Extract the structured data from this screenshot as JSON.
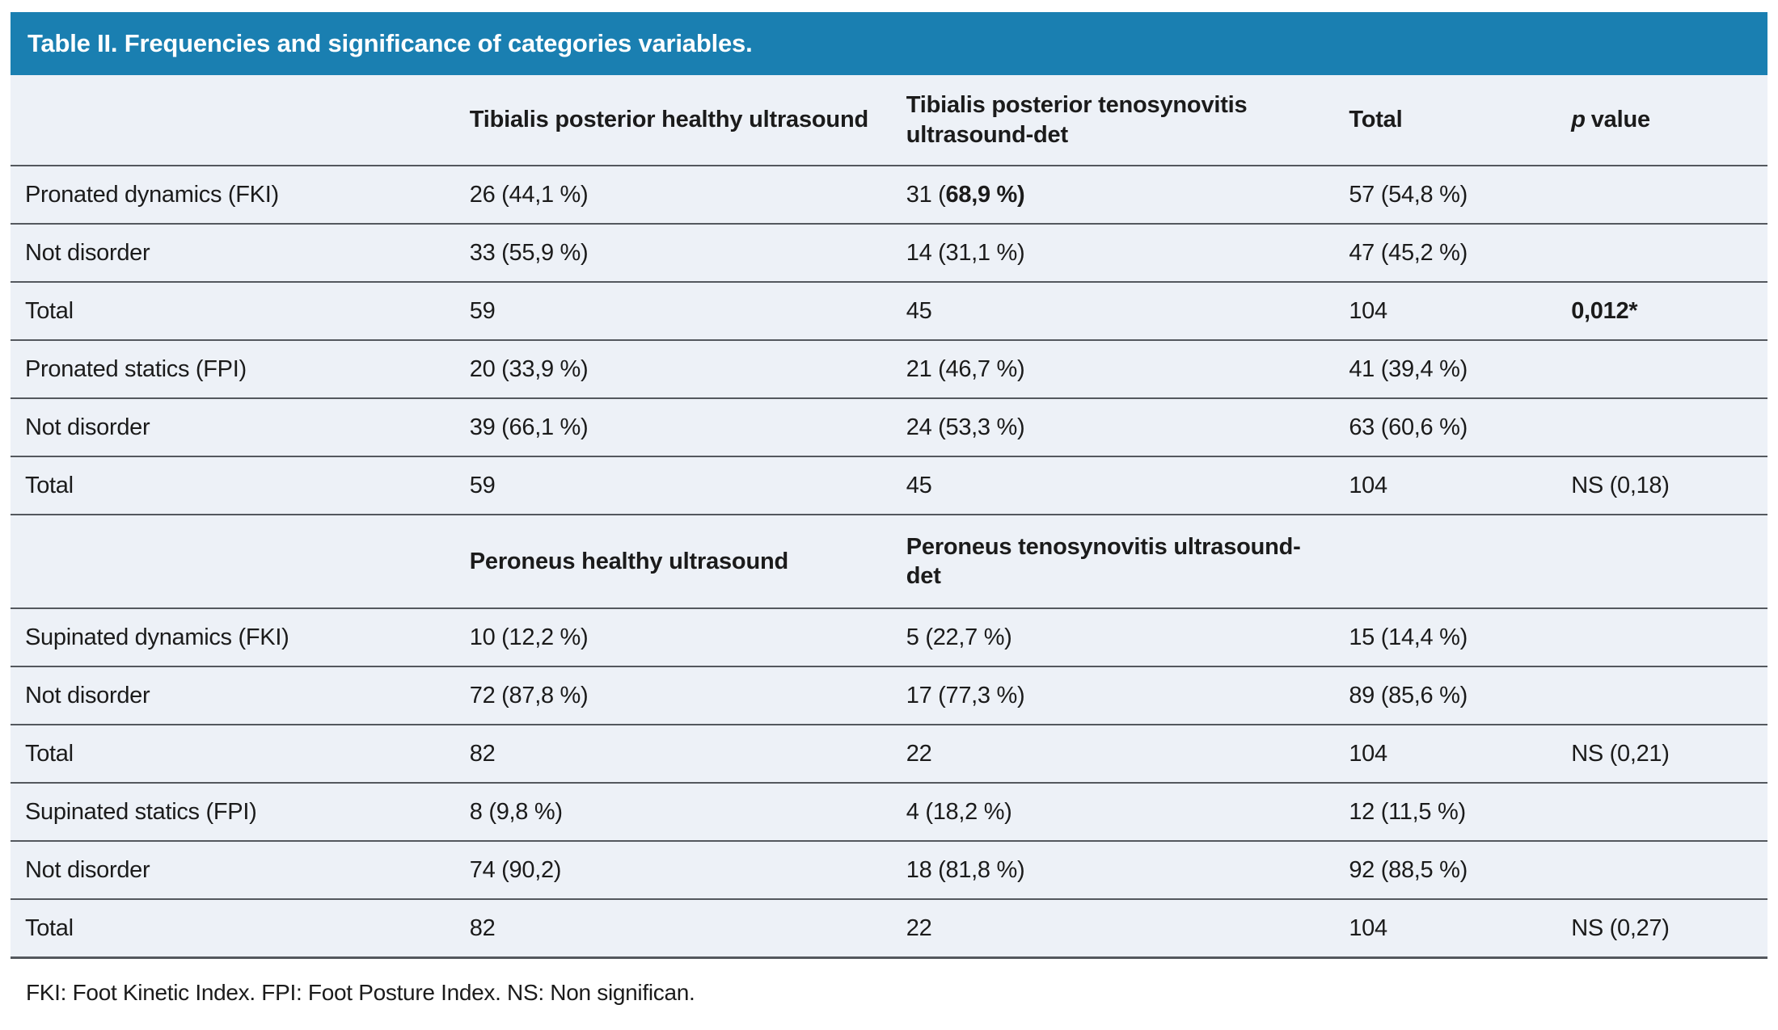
{
  "title_bar": {
    "text": "Table II. Frequencies and significance of categories variables."
  },
  "table": {
    "header_section1": {
      "col2": "Tibialis posterior healthy ultrasound",
      "col3": "Tibialis posterior tenosynovitis ultrasound-det",
      "col4": "Total",
      "col5_p": "p",
      "col5_value": "value"
    },
    "header_section2": {
      "col2": "Peroneus healthy ultrasound",
      "col3": "Peroneus tenosynovitis ultrasound-det"
    },
    "rows": {
      "r1": {
        "label": "Pronated dynamics (FKI)",
        "c2": "26 (44,1 %)",
        "c3_pre": "31 (",
        "c3_bold": "68,9 %)",
        "c4": "57 (54,8 %)",
        "c5": ""
      },
      "r2": {
        "label": "Not disorder",
        "c2": "33 (55,9 %)",
        "c3": "14 (31,1 %)",
        "c4": "47 (45,2 %)",
        "c5": ""
      },
      "r3": {
        "label": "Total",
        "c2": "59",
        "c3": "45",
        "c4": "104",
        "c5_bold": "0,012*"
      },
      "r4": {
        "label": "Pronated statics (FPI)",
        "c2": "20 (33,9 %)",
        "c3": "21 (46,7 %)",
        "c4": "41 (39,4 %)",
        "c5": ""
      },
      "r5": {
        "label": "Not disorder",
        "c2": "39 (66,1 %)",
        "c3": "24 (53,3 %)",
        "c4": "63 (60,6 %)",
        "c5": ""
      },
      "r6": {
        "label": "Total",
        "c2": "59",
        "c3": "45",
        "c4": "104",
        "c5": "NS (0,18)"
      },
      "r7": {
        "label": "Supinated dynamics (FKI)",
        "c2": "10 (12,2 %)",
        "c3": "5 (22,7 %)",
        "c4": "15 (14,4 %)",
        "c5": ""
      },
      "r8": {
        "label": "Not disorder",
        "c2": "72 (87,8 %)",
        "c3": "17 (77,3 %)",
        "c4": "89 (85,6 %)",
        "c5": ""
      },
      "r9": {
        "label": "Total",
        "c2": "82",
        "c3": "22",
        "c4": "104",
        "c5": "NS (0,21)"
      },
      "r10": {
        "label": "Supinated statics (FPI)",
        "c2": "8 (9,8 %)",
        "c3": "4 (18,2 %)",
        "c4": "12 (11,5 %)",
        "c5": ""
      },
      "r11": {
        "label": "Not disorder",
        "c2": "74 (90,2)",
        "c3": "18 (81,8 %)",
        "c4": "92 (88,5 %)",
        "c5": ""
      },
      "r12": {
        "label": "Total",
        "c2": "82",
        "c3": "22",
        "c4": "104",
        "c5": "NS (0,27)"
      }
    }
  },
  "footnote": {
    "text": "FKI: Foot Kinetic Index. FPI: Foot Posture Index. NS: Non significan."
  },
  "colors": {
    "title_bg": "#1a7fb1",
    "title_text": "#ffffff",
    "row_bg": "#edf1f7",
    "border": "#54585e",
    "text": "#1b1b1b"
  }
}
